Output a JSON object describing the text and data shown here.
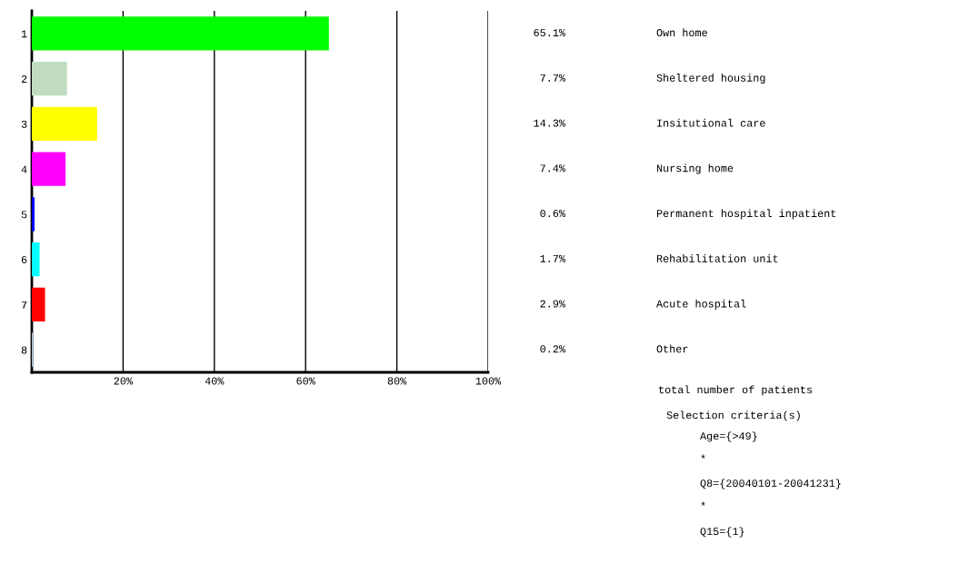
{
  "chart_data": {
    "type": "bar",
    "orientation": "horizontal",
    "categories": [
      "1",
      "2",
      "3",
      "4",
      "5",
      "6",
      "7",
      "8"
    ],
    "values": [
      65.1,
      7.7,
      14.3,
      7.4,
      0.6,
      1.7,
      2.9,
      0.2
    ],
    "colors": [
      "#00ff00",
      "#c0dcc0",
      "#ffff00",
      "#ff00ff",
      "#0000ff",
      "#00ffff",
      "#ff0000",
      "#a6caf0"
    ],
    "value_labels": [
      "65.1%",
      "7.7%",
      "14.3%",
      "7.4%",
      "0.6%",
      "1.7%",
      "2.9%",
      "0.2%"
    ],
    "xlim": [
      0,
      100
    ],
    "xticks": [
      {
        "value": 20,
        "label": "20%"
      },
      {
        "value": 40,
        "label": "40%"
      },
      {
        "value": 60,
        "label": "60%"
      },
      {
        "value": 80,
        "label": "80%"
      },
      {
        "value": 100,
        "label": "100%"
      }
    ],
    "grid": "x",
    "annotations": [
      "Own home",
      "Sheltered housing",
      "Insitutional care",
      "Nursing home",
      "Permanent hospital inpatient",
      "Rehabilitation unit",
      "Acute hospital",
      "Other",
      "total number of patients",
      "Selection criteria(s)",
      "Age={>49}",
      "*",
      "Q8={20040101-20041231}",
      "*",
      "Q15={1}"
    ]
  }
}
